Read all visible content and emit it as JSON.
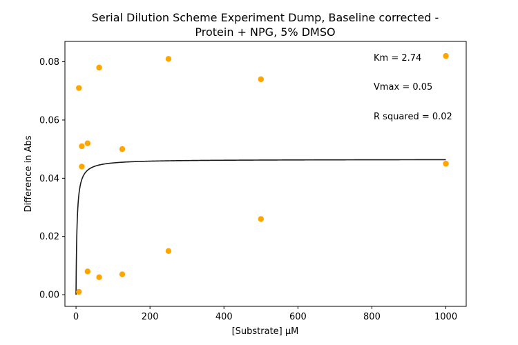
{
  "chart_data": {
    "type": "scatter",
    "title_line1": "Serial Dilution Scheme Experiment Dump, Baseline corrected -",
    "title_line2": "Protein + NPG, 5% DMSO",
    "xlabel": "[Substrate] µM",
    "ylabel": "Difference in Abs",
    "xlim": [
      -30,
      1055
    ],
    "ylim": [
      -0.004,
      0.087
    ],
    "xticks": [
      0,
      200,
      400,
      600,
      800,
      1000
    ],
    "yticks": [
      0.0,
      0.02,
      0.04,
      0.06,
      0.08
    ],
    "xtick_labels": [
      "0",
      "200",
      "400",
      "600",
      "800",
      "1000"
    ],
    "ytick_labels": [
      "0.00",
      "0.02",
      "0.04",
      "0.06",
      "0.08"
    ],
    "grid": false,
    "point_color": "#ffa500",
    "fit_color": "#1a1a1a",
    "points": [
      {
        "x": 7.8,
        "y": 0.001
      },
      {
        "x": 7.8,
        "y": 0.071
      },
      {
        "x": 15.6,
        "y": 0.044
      },
      {
        "x": 15.6,
        "y": 0.051
      },
      {
        "x": 31.25,
        "y": 0.052
      },
      {
        "x": 31.25,
        "y": 0.008
      },
      {
        "x": 62.5,
        "y": 0.078
      },
      {
        "x": 62.5,
        "y": 0.006
      },
      {
        "x": 125,
        "y": 0.05
      },
      {
        "x": 125,
        "y": 0.007
      },
      {
        "x": 250,
        "y": 0.081
      },
      {
        "x": 250,
        "y": 0.015
      },
      {
        "x": 500,
        "y": 0.074
      },
      {
        "x": 500,
        "y": 0.026
      },
      {
        "x": 1000,
        "y": 0.082
      },
      {
        "x": 1000,
        "y": 0.045
      }
    ],
    "fit": {
      "model": "michaelis-menten",
      "km": 2.74,
      "vmax": 0.0465,
      "x_range": [
        0,
        1000
      ]
    },
    "annotations": [
      "Km = 2.74",
      "Vmax = 0.05",
      "R squared = 0.02"
    ]
  }
}
